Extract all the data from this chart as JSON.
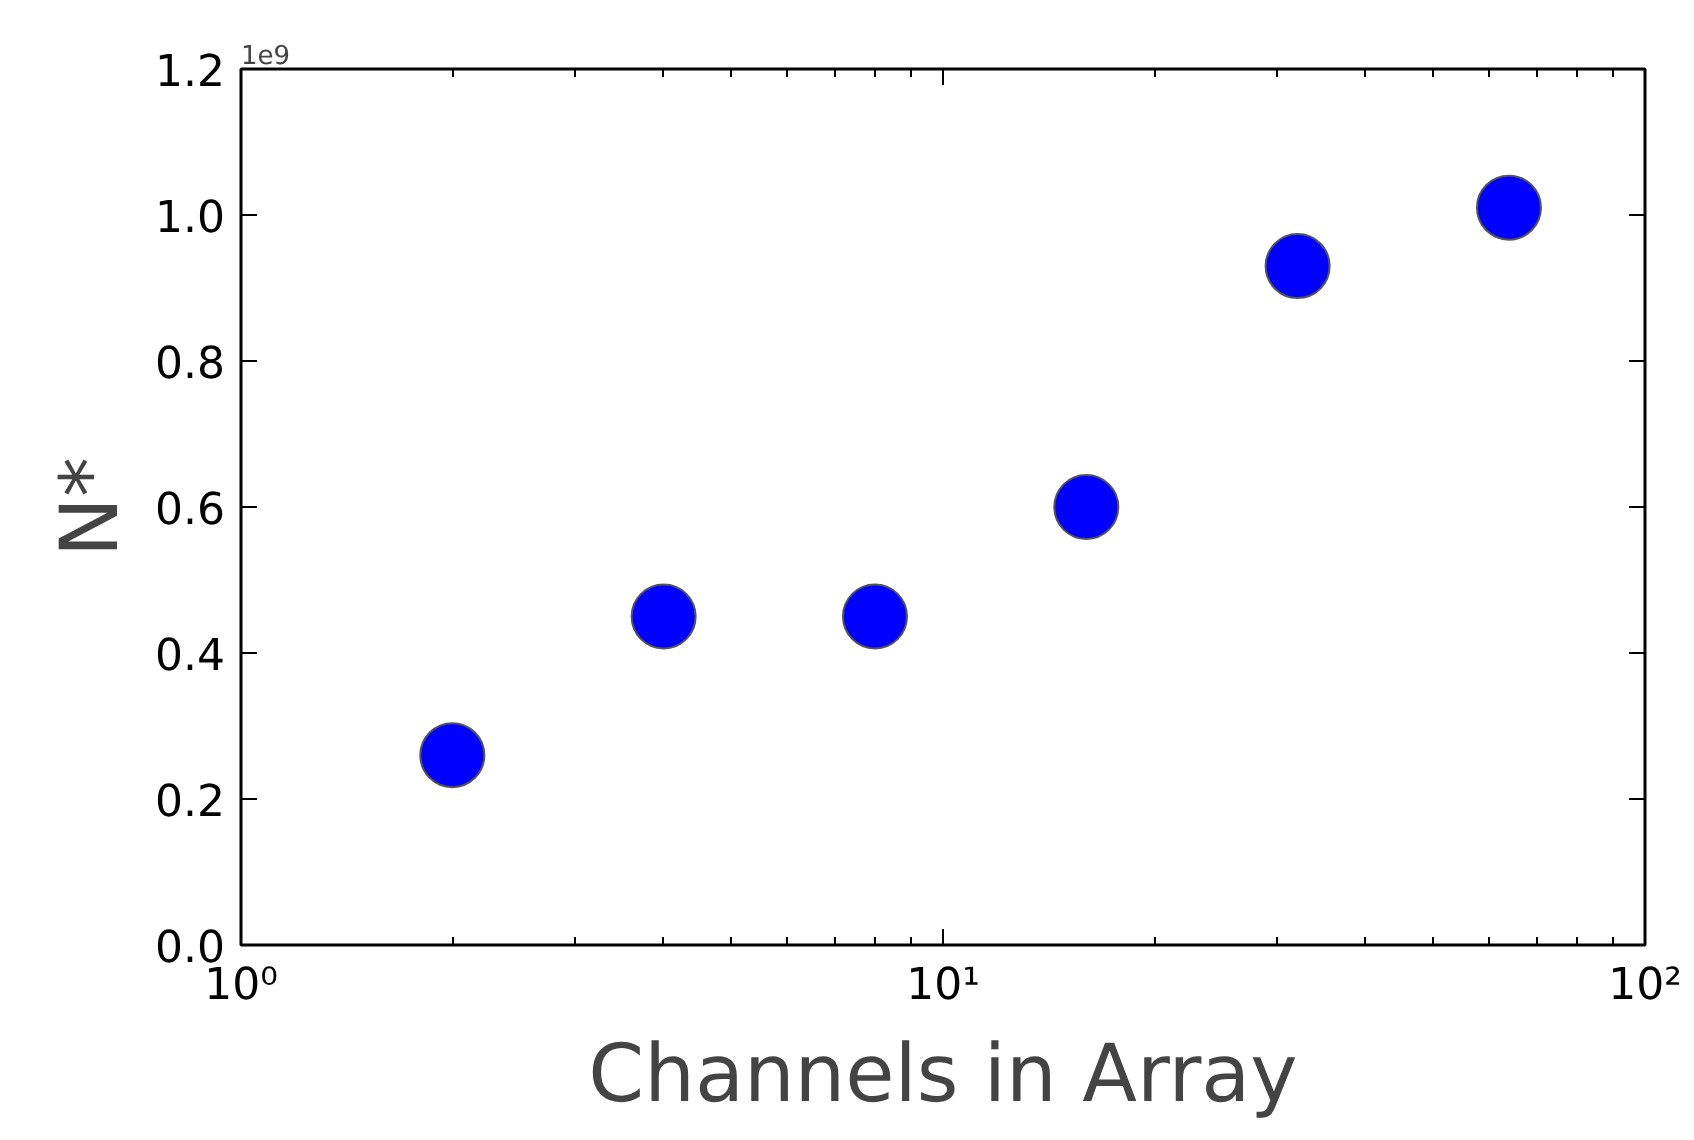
{
  "chart_data": {
    "type": "scatter",
    "xlabel": "Channels in Array",
    "ylabel": "N*",
    "annotations": [
      "1e9"
    ],
    "x": [
      2,
      4,
      8,
      16,
      32,
      64
    ],
    "series": [
      {
        "color": "#0000ff",
        "values": [
          0.26,
          0.45,
          0.45,
          0.6,
          0.93,
          1.01
        ]
      }
    ],
    "xlim": [
      1,
      100
    ],
    "xticks": [
      {
        "value": 1,
        "label": "10⁰"
      },
      {
        "value": 10,
        "label": "10¹"
      },
      {
        "value": 100,
        "label": "10²"
      }
    ],
    "ylim": [
      0,
      1.2
    ],
    "yticks": [
      {
        "value": 0,
        "label": "0.0"
      },
      {
        "value": 0.2,
        "label": "0.2"
      },
      {
        "value": 0.4,
        "label": "0.4"
      },
      {
        "value": 0.6,
        "label": "0.6"
      },
      {
        "value": 0.8,
        "label": "0.8"
      },
      {
        "value": 1.0,
        "label": "1.0"
      },
      {
        "value": 1.2,
        "label": "1.2"
      }
    ],
    "log": "x",
    "grid": false,
    "marker": "circle"
  }
}
